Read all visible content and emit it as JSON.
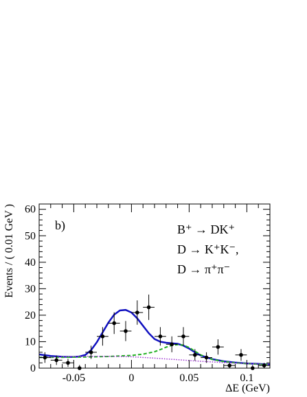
{
  "chart_data": {
    "type": "scatter",
    "xlabel": "ΔE (GeV)",
    "ylabel": "Events / ( 0.01 GeV )",
    "xlim": [
      -0.08,
      0.12
    ],
    "ylim": [
      0,
      62
    ],
    "x_ticks": [
      -0.05,
      0,
      0.05,
      0.1
    ],
    "x_tick_labels": [
      "-0.05",
      "0",
      "0.05",
      "0.1"
    ],
    "y_ticks": [
      0,
      10,
      20,
      30,
      40,
      50,
      60
    ],
    "y_tick_labels": [
      "0",
      "10",
      "20",
      "30",
      "40",
      "50",
      "60"
    ],
    "panel_label": "b)",
    "annotations": [
      "B⁺ → DK⁺",
      "D → K⁺K⁻,",
      "D → π⁺π⁻"
    ],
    "data_points": {
      "x": [
        -0.075,
        -0.065,
        -0.055,
        -0.045,
        -0.035,
        -0.025,
        -0.015,
        -0.005,
        0.005,
        0.015,
        0.025,
        0.035,
        0.045,
        0.055,
        0.065,
        0.075,
        0.085,
        0.095,
        0.105,
        0.115
      ],
      "y": [
        4,
        3,
        2,
        0,
        6,
        12,
        17,
        14,
        21,
        23,
        12,
        9,
        12,
        5,
        4,
        8,
        1,
        5,
        0,
        1
      ],
      "yerr": [
        2,
        1.8,
        1.5,
        1.2,
        2.5,
        3.5,
        4.1,
        3.8,
        4.6,
        4.8,
        3.5,
        3,
        3.5,
        2.2,
        2,
        2.9,
        1,
        2.2,
        1.2,
        1
      ],
      "xerr": 0.005
    },
    "series": [
      {
        "style": "solid",
        "color": "#1010c0",
        "x": [
          -0.08,
          -0.07,
          -0.06,
          -0.05,
          -0.045,
          -0.04,
          -0.035,
          -0.03,
          -0.025,
          -0.02,
          -0.015,
          -0.01,
          -0.005,
          0,
          0.005,
          0.01,
          0.015,
          0.02,
          0.025,
          0.03,
          0.035,
          0.04,
          0.045,
          0.05,
          0.055,
          0.06,
          0.07,
          0.08,
          0.09,
          0.1,
          0.11,
          0.12
        ],
        "y": [
          5.2,
          4.6,
          4.3,
          4.2,
          4.4,
          5.0,
          6.8,
          9.8,
          13.5,
          17.2,
          20.2,
          21.8,
          22.0,
          21.0,
          18.8,
          16.0,
          13.2,
          11.0,
          10.0,
          9.6,
          9.4,
          9.2,
          8.5,
          7.4,
          6.0,
          4.8,
          3.4,
          2.6,
          2.1,
          1.8,
          1.6,
          1.4
        ]
      },
      {
        "style": "dashed",
        "color": "#22b022",
        "x": [
          -0.08,
          -0.06,
          -0.04,
          -0.02,
          0,
          0.01,
          0.02,
          0.025,
          0.03,
          0.035,
          0.04,
          0.045,
          0.05,
          0.055,
          0.06,
          0.07,
          0.08,
          0.09,
          0.1,
          0.11,
          0.12
        ],
        "y": [
          4.1,
          4.1,
          4.2,
          4.4,
          4.8,
          5.3,
          6.2,
          7.0,
          7.9,
          8.6,
          8.9,
          8.7,
          7.8,
          6.4,
          5.0,
          3.3,
          2.5,
          2.0,
          1.7,
          1.5,
          1.4
        ]
      },
      {
        "style": "dotted",
        "color": "#9b30d0",
        "x": [
          -0.08,
          -0.06,
          -0.04,
          -0.02,
          0,
          0.02,
          0.04,
          0.06,
          0.08,
          0.1,
          0.12
        ],
        "y": [
          4.0,
          4.3,
          4.5,
          4.5,
          4.3,
          3.8,
          3.2,
          2.6,
          2.1,
          1.7,
          1.4
        ]
      }
    ]
  }
}
